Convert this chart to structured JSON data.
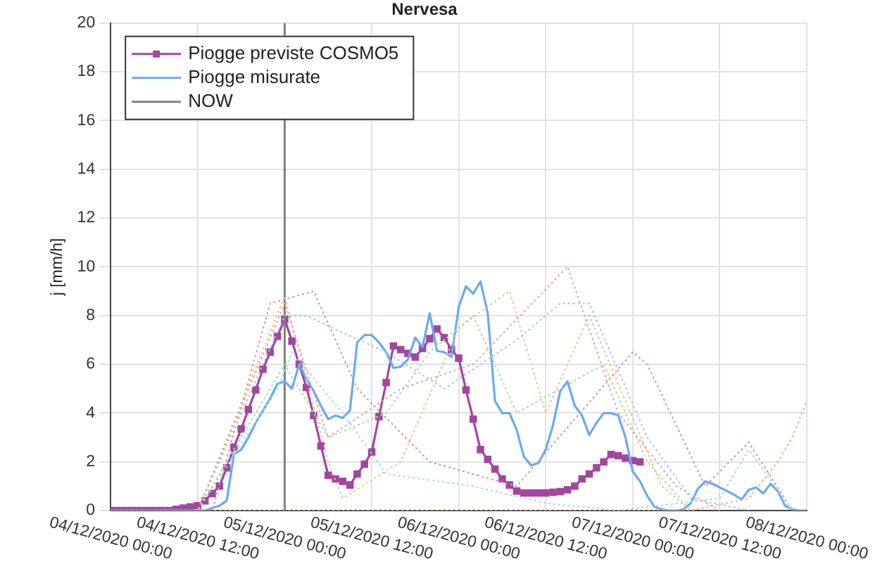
{
  "chart_data": {
    "type": "line",
    "title": "Nervesa",
    "ylabel": "j [mm/h]",
    "xlim": [
      "2020-12-04T00:00",
      "2020-12-08T00:00"
    ],
    "xticks": [
      {
        "value": "2020-12-04T00:00",
        "label": "04/12/2020 00:00"
      },
      {
        "value": "2020-12-04T12:00",
        "label": "04/12/2020 12:00"
      },
      {
        "value": "2020-12-05T00:00",
        "label": "05/12/2020 00:00"
      },
      {
        "value": "2020-12-05T12:00",
        "label": "05/12/2020 12:00"
      },
      {
        "value": "2020-12-06T00:00",
        "label": "06/12/2020 00:00"
      },
      {
        "value": "2020-12-06T12:00",
        "label": "06/12/2020 12:00"
      },
      {
        "value": "2020-12-07T00:00",
        "label": "07/12/2020 00:00"
      },
      {
        "value": "2020-12-07T12:00",
        "label": "07/12/2020 12:00"
      },
      {
        "value": "2020-12-08T00:00",
        "label": "08/12/2020 00:00"
      }
    ],
    "ylim": [
      0,
      20
    ],
    "yticks": [
      0,
      2,
      4,
      6,
      8,
      10,
      12,
      14,
      16,
      18,
      20
    ],
    "grid": true,
    "legend": "top left",
    "ref_lines": [
      {
        "axis": "x",
        "value": "2020-12-05T00:00",
        "label": "NOW",
        "color": "#808080"
      }
    ],
    "series": [
      {
        "color": "#e8a0a0",
        "line_style": "dotted",
        "marker": "none",
        "x": [
          "2020-12-04T00:00",
          "2020-12-04T12:00",
          "2020-12-05T00:00",
          "2020-12-05T06:00",
          "2020-12-05T16:00",
          "2020-12-06T02:00",
          "2020-12-06T15:00",
          "2020-12-06T22:00",
          "2020-12-07T06:00",
          "2020-12-07T12:00"
        ],
        "values": [
          0,
          0,
          8.5,
          3,
          5,
          6,
          10,
          4,
          1,
          0
        ]
      },
      {
        "color": "#9cc8e8",
        "line_style": "dotted",
        "marker": "none",
        "x": [
          "2020-12-04T00:00",
          "2020-12-04T12:00",
          "2020-12-05T00:00",
          "2020-12-05T03:00",
          "2020-12-05T08:00",
          "2020-12-05T14:00",
          "2020-12-05T22:00",
          "2020-12-06T08:00",
          "2020-12-06T14:00",
          "2020-12-06T18:00",
          "2020-12-07T02:00",
          "2020-12-07T08:00",
          "2020-12-07T16:00"
        ],
        "values": [
          0,
          0,
          8,
          8,
          7.3,
          6.5,
          5,
          7,
          8.5,
          8.5,
          3,
          0.5,
          0
        ]
      },
      {
        "color": "#f0c080",
        "line_style": "dotted",
        "marker": "none",
        "x": [
          "2020-12-04T00:00",
          "2020-12-04T12:00",
          "2020-12-05T00:00",
          "2020-12-05T06:00",
          "2020-12-05T08:00",
          "2020-12-05T16:00",
          "2020-12-06T00:00",
          "2020-12-06T07:00",
          "2020-12-06T12:00",
          "2020-12-06T18:00",
          "2020-12-07T04:00",
          "2020-12-07T08:00"
        ],
        "values": [
          0,
          0,
          8.8,
          2,
          0.5,
          2,
          7.5,
          9,
          4,
          8,
          1,
          0
        ]
      },
      {
        "color": "#a8d8a0",
        "line_style": "dotted",
        "marker": "none",
        "x": [
          "2020-12-04T00:00",
          "2020-12-04T12:00",
          "2020-12-05T00:00",
          "2020-12-05T06:00",
          "2020-12-05T14:00",
          "2020-12-05T20:00",
          "2020-12-06T02:00",
          "2020-12-06T08:00",
          "2020-12-06T20:00",
          "2020-12-07T02:00",
          "2020-12-07T08:00"
        ],
        "values": [
          0,
          0,
          6,
          3,
          4,
          6.5,
          8,
          4,
          6,
          2,
          0
        ]
      },
      {
        "color": "#a0d8e8",
        "line_style": "dotted",
        "marker": "none",
        "x": [
          "2020-12-04T00:00",
          "2020-12-04T12:00",
          "2020-12-04T23:00",
          "2020-12-05T01:00",
          "2020-12-05T08:00",
          "2020-12-05T14:00",
          "2020-12-06T02:00",
          "2020-12-06T12:00",
          "2020-12-06T22:00",
          "2020-12-07T12:00",
          "2020-12-07T16:00",
          "2020-12-07T22:00"
        ],
        "values": [
          0,
          0,
          5,
          6.5,
          4,
          1.5,
          1,
          0.3,
          0,
          0.5,
          2.5,
          0
        ]
      },
      {
        "color": "#e09090",
        "line_style": "dotted",
        "marker": "none",
        "x": [
          "2020-12-04T00:00",
          "2020-12-04T14:00",
          "2020-12-04T22:00",
          "2020-12-05T04:00",
          "2020-12-05T10:00",
          "2020-12-05T20:00",
          "2020-12-06T08:00",
          "2020-12-07T00:00",
          "2020-12-07T02:00",
          "2020-12-07T10:00",
          "2020-12-07T16:00",
          "2020-12-07T22:00"
        ],
        "values": [
          0,
          0,
          8.5,
          9,
          5,
          2,
          1,
          6.5,
          6,
          1,
          2.8,
          0
        ]
      },
      {
        "color": "#f0b070",
        "line_style": "dotted",
        "marker": "none",
        "x": [
          "2020-12-04T00:00",
          "2020-12-07T08:00",
          "2020-12-07T16:00",
          "2020-12-07T20:00",
          "2020-12-07T22:00",
          "2020-12-08T00:00"
        ],
        "values": [
          0,
          0,
          0.5,
          2,
          3,
          4.5
        ]
      },
      {
        "name": "Piogge previste COSMO5",
        "color": "#a2479e",
        "line_style": "solid",
        "marker": "square",
        "x": [
          "2020-12-04T00:00",
          "2020-12-04T01:00",
          "2020-12-04T02:00",
          "2020-12-04T03:00",
          "2020-12-04T04:00",
          "2020-12-04T05:00",
          "2020-12-04T06:00",
          "2020-12-04T07:00",
          "2020-12-04T08:00",
          "2020-12-04T09:00",
          "2020-12-04T10:00",
          "2020-12-04T11:00",
          "2020-12-04T12:00",
          "2020-12-04T13:00",
          "2020-12-04T14:00",
          "2020-12-04T15:00",
          "2020-12-04T16:00",
          "2020-12-04T17:00",
          "2020-12-04T18:00",
          "2020-12-04T19:00",
          "2020-12-04T20:00",
          "2020-12-04T21:00",
          "2020-12-04T22:00",
          "2020-12-04T23:00",
          "2020-12-05T00:00",
          "2020-12-05T01:00",
          "2020-12-05T02:00",
          "2020-12-05T03:00",
          "2020-12-05T04:00",
          "2020-12-05T05:00",
          "2020-12-05T06:00",
          "2020-12-05T07:00",
          "2020-12-05T08:00",
          "2020-12-05T09:00",
          "2020-12-05T10:00",
          "2020-12-05T11:00",
          "2020-12-05T12:00",
          "2020-12-05T13:00",
          "2020-12-05T14:00",
          "2020-12-05T15:00",
          "2020-12-05T16:00",
          "2020-12-05T17:00",
          "2020-12-05T18:00",
          "2020-12-05T19:00",
          "2020-12-05T20:00",
          "2020-12-05T21:00",
          "2020-12-05T22:00",
          "2020-12-05T23:00",
          "2020-12-06T00:00",
          "2020-12-06T01:00",
          "2020-12-06T02:00",
          "2020-12-06T03:00",
          "2020-12-06T04:00",
          "2020-12-06T05:00",
          "2020-12-06T06:00",
          "2020-12-06T07:00",
          "2020-12-06T08:00",
          "2020-12-06T09:00",
          "2020-12-06T10:00",
          "2020-12-06T11:00",
          "2020-12-06T12:00",
          "2020-12-06T13:00",
          "2020-12-06T14:00",
          "2020-12-06T15:00",
          "2020-12-06T16:00",
          "2020-12-06T17:00",
          "2020-12-06T18:00",
          "2020-12-06T19:00",
          "2020-12-06T20:00",
          "2020-12-06T21:00",
          "2020-12-06T22:00",
          "2020-12-06T23:00",
          "2020-12-07T00:00",
          "2020-12-07T01:00"
        ],
        "values": [
          0,
          0,
          0,
          0,
          0,
          0,
          0,
          0,
          0,
          0.05,
          0.1,
          0.15,
          0.2,
          0.4,
          0.7,
          1.0,
          1.75,
          2.6,
          3.35,
          4.15,
          4.95,
          5.8,
          6.5,
          7.15,
          7.85,
          6.95,
          6.0,
          5.05,
          3.9,
          2.65,
          1.45,
          1.3,
          1.2,
          1.05,
          1.5,
          1.9,
          2.4,
          3.85,
          5.25,
          6.75,
          6.6,
          6.45,
          6.3,
          6.65,
          7.05,
          7.45,
          7.1,
          6.6,
          6.25,
          4.95,
          3.75,
          2.5,
          2.1,
          1.7,
          1.3,
          1.05,
          0.8,
          0.72,
          0.72,
          0.72,
          0.72,
          0.75,
          0.78,
          0.85,
          1.0,
          1.3,
          1.5,
          1.75,
          2.0,
          2.3,
          2.25,
          2.15,
          2.05,
          2.0
        ]
      },
      {
        "name": "Piogge misurate",
        "color": "#6aaaf0",
        "line_style": "solid",
        "marker": "none",
        "x": [
          "2020-12-04T00:00",
          "2020-12-04T01:00",
          "2020-12-04T02:00",
          "2020-12-04T03:00",
          "2020-12-04T04:00",
          "2020-12-04T05:00",
          "2020-12-04T06:00",
          "2020-12-04T07:00",
          "2020-12-04T08:00",
          "2020-12-04T09:00",
          "2020-12-04T10:00",
          "2020-12-04T11:00",
          "2020-12-04T12:00",
          "2020-12-04T13:00",
          "2020-12-04T14:00",
          "2020-12-04T15:00",
          "2020-12-04T16:00",
          "2020-12-04T17:00",
          "2020-12-04T18:00",
          "2020-12-04T19:00",
          "2020-12-04T20:00",
          "2020-12-04T21:00",
          "2020-12-04T22:00",
          "2020-12-04T23:00",
          "2020-12-05T00:00",
          "2020-12-05T01:00",
          "2020-12-05T02:00",
          "2020-12-05T03:00",
          "2020-12-05T04:00",
          "2020-12-05T05:00",
          "2020-12-05T06:00",
          "2020-12-05T07:00",
          "2020-12-05T08:00",
          "2020-12-05T09:00",
          "2020-12-05T10:00",
          "2020-12-05T11:00",
          "2020-12-05T12:00",
          "2020-12-05T13:00",
          "2020-12-05T14:00",
          "2020-12-05T15:00",
          "2020-12-05T16:00",
          "2020-12-05T17:00",
          "2020-12-05T18:00",
          "2020-12-05T19:00",
          "2020-12-05T20:00",
          "2020-12-05T21:00",
          "2020-12-05T22:00",
          "2020-12-05T23:00",
          "2020-12-06T00:00",
          "2020-12-06T01:00",
          "2020-12-06T02:00",
          "2020-12-06T03:00",
          "2020-12-06T04:00",
          "2020-12-06T05:00",
          "2020-12-06T06:00",
          "2020-12-06T07:00",
          "2020-12-06T08:00",
          "2020-12-06T09:00",
          "2020-12-06T10:00",
          "2020-12-06T11:00",
          "2020-12-06T12:00",
          "2020-12-06T13:00",
          "2020-12-06T14:00",
          "2020-12-06T15:00",
          "2020-12-06T16:00",
          "2020-12-06T17:00",
          "2020-12-06T18:00",
          "2020-12-06T19:00",
          "2020-12-06T20:00",
          "2020-12-06T21:00",
          "2020-12-06T22:00",
          "2020-12-06T23:00",
          "2020-12-07T00:00",
          "2020-12-07T01:00",
          "2020-12-07T02:00",
          "2020-12-07T03:00",
          "2020-12-07T04:00",
          "2020-12-07T05:00",
          "2020-12-07T06:00",
          "2020-12-07T07:00",
          "2020-12-07T08:00",
          "2020-12-07T09:00",
          "2020-12-07T10:00",
          "2020-12-07T11:00",
          "2020-12-07T12:00",
          "2020-12-07T13:00",
          "2020-12-07T14:00",
          "2020-12-07T15:00",
          "2020-12-07T16:00",
          "2020-12-07T17:00",
          "2020-12-07T18:00",
          "2020-12-07T19:00",
          "2020-12-07T20:00",
          "2020-12-07T21:00",
          "2020-12-07T22:00",
          "2020-12-07T23:00",
          "2020-12-08T00:00"
        ],
        "values": [
          0,
          0,
          0,
          0,
          0,
          0,
          0,
          0,
          0,
          0,
          0,
          0,
          0,
          0,
          0.1,
          0.2,
          0.4,
          2.3,
          2.5,
          3.0,
          3.6,
          4.1,
          4.6,
          5.2,
          5.3,
          5.0,
          6.0,
          5.4,
          4.9,
          4.3,
          3.75,
          3.9,
          3.8,
          4.1,
          6.9,
          7.2,
          7.2,
          6.9,
          6.5,
          5.85,
          5.9,
          6.2,
          7.1,
          6.7,
          8.1,
          6.55,
          6.5,
          6.3,
          8.35,
          9.2,
          8.9,
          9.4,
          8.1,
          4.5,
          4.0,
          4.0,
          3.3,
          2.2,
          1.85,
          1.95,
          2.5,
          3.5,
          4.9,
          5.3,
          4.3,
          3.9,
          3.1,
          3.6,
          4.0,
          4.0,
          3.9,
          3.0,
          1.6,
          1.2,
          0.6,
          0.15,
          0.05,
          0,
          0,
          0.05,
          0.3,
          0.9,
          1.2,
          1.1,
          0.95,
          0.8,
          0.65,
          0.45,
          0.85,
          0.95,
          0.7,
          1.1,
          0.8,
          0.2,
          0.05,
          0,
          0
        ]
      }
    ]
  }
}
